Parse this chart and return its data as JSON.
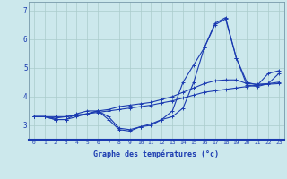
{
  "xlabel": "Graphe des températures (°c)",
  "bg_color": "#cce8ec",
  "line_color": "#1a3ab0",
  "grid_color": "#aacccc",
  "hours": [
    0,
    1,
    2,
    3,
    4,
    5,
    6,
    7,
    8,
    9,
    10,
    11,
    12,
    13,
    14,
    15,
    16,
    17,
    18,
    19,
    20,
    21,
    22,
    23
  ],
  "line1": [
    3.3,
    3.3,
    3.2,
    3.2,
    3.4,
    3.5,
    3.5,
    3.2,
    2.85,
    2.8,
    2.95,
    3.0,
    3.2,
    3.3,
    3.6,
    4.5,
    5.7,
    6.55,
    6.75,
    5.35,
    4.5,
    4.4,
    4.8,
    4.9
  ],
  "line2": [
    3.3,
    3.3,
    3.2,
    3.2,
    3.3,
    3.4,
    3.5,
    3.3,
    2.9,
    2.85,
    2.95,
    3.05,
    3.2,
    3.5,
    4.5,
    5.1,
    5.7,
    6.5,
    6.7,
    5.35,
    4.4,
    4.35,
    4.45,
    4.8
  ],
  "line3": [
    3.3,
    3.3,
    3.25,
    3.3,
    3.35,
    3.4,
    3.5,
    3.55,
    3.65,
    3.7,
    3.75,
    3.8,
    3.9,
    4.0,
    4.15,
    4.3,
    4.45,
    4.55,
    4.58,
    4.58,
    4.45,
    4.43,
    4.45,
    4.5
  ],
  "line4": [
    3.3,
    3.3,
    3.3,
    3.3,
    3.35,
    3.4,
    3.45,
    3.5,
    3.55,
    3.6,
    3.65,
    3.7,
    3.78,
    3.85,
    3.95,
    4.05,
    4.15,
    4.2,
    4.25,
    4.3,
    4.35,
    4.4,
    4.43,
    4.45
  ],
  "ylim": [
    2.5,
    7.3
  ],
  "xlim": [
    -0.5,
    23.5
  ],
  "yticks": [
    3,
    4,
    5,
    6,
    7
  ],
  "xticks": [
    0,
    1,
    2,
    3,
    4,
    5,
    6,
    7,
    8,
    9,
    10,
    11,
    12,
    13,
    14,
    15,
    16,
    17,
    18,
    19,
    20,
    21,
    22,
    23
  ]
}
